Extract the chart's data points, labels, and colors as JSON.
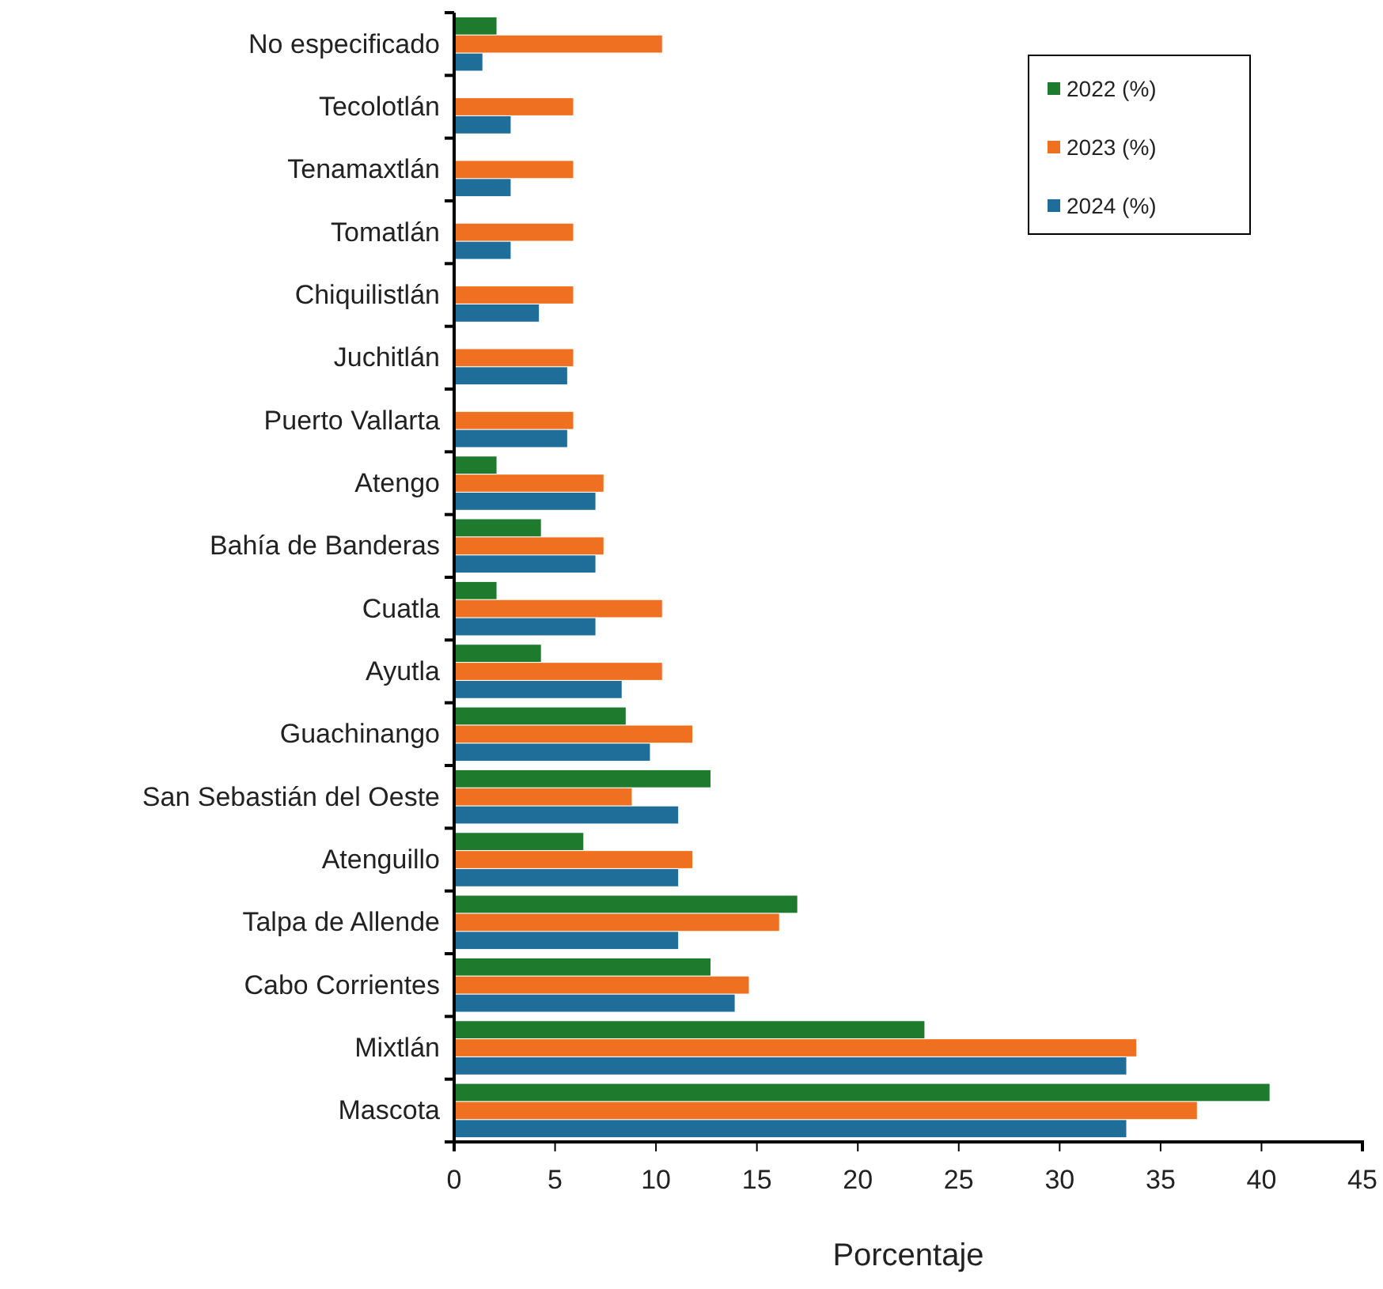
{
  "chart_data": {
    "type": "bar",
    "orientation": "horizontal",
    "xlabel": "Porcentaje",
    "categories": [
      "No especificado",
      "Tecolotlán",
      "Tenamaxtlán",
      "Tomatlán",
      "Chiquilistlán",
      "Juchitlán",
      "Puerto Vallarta",
      "Atengo",
      "Bahía de Banderas",
      "Cuatla",
      "Ayutla",
      "Guachinango",
      "San Sebastián del Oeste",
      "Atenguillo",
      "Talpa de Allende",
      "Cabo Corrientes",
      "Mixtlán",
      "Mascota"
    ],
    "series": [
      {
        "name": "2022 (%)",
        "color": "#1e7b2d",
        "values": [
          2.1,
          null,
          null,
          null,
          null,
          null,
          null,
          2.1,
          4.3,
          2.1,
          4.3,
          8.5,
          12.7,
          6.4,
          17.0,
          12.7,
          23.3,
          40.4
        ]
      },
      {
        "name": "2023 (%)",
        "color": "#f07021",
        "values": [
          10.3,
          5.9,
          5.9,
          5.9,
          5.9,
          5.9,
          5.9,
          7.4,
          7.4,
          10.3,
          10.3,
          11.8,
          8.8,
          11.8,
          16.1,
          14.6,
          33.8,
          36.8
        ]
      },
      {
        "name": "2024 (%)",
        "color": "#1f6e99",
        "values": [
          1.4,
          2.8,
          2.8,
          2.8,
          4.2,
          5.6,
          5.6,
          7.0,
          7.0,
          7.0,
          8.3,
          9.7,
          11.1,
          11.1,
          11.1,
          13.9,
          33.3,
          33.3
        ]
      }
    ],
    "xlim": [
      0,
      45
    ],
    "xticks": [
      0,
      5,
      10,
      15,
      20,
      25,
      30,
      35,
      40,
      45
    ],
    "legend": "top right",
    "grid": false
  }
}
